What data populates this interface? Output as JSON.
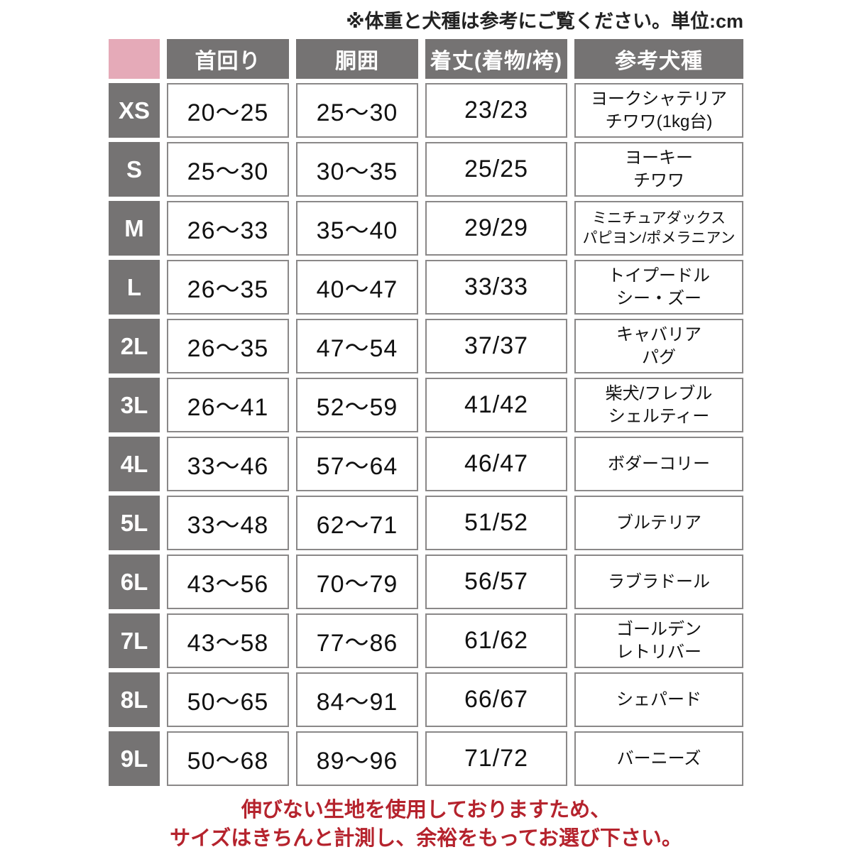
{
  "note": "※体重と犬種は参考にご覧ください。単位:cm",
  "table": {
    "columns": {
      "neck": "首回り",
      "girth": "胴囲",
      "length": "着丈(着物/袴)",
      "breeds": "参考犬種"
    },
    "rows": [
      {
        "size": "XS",
        "neck": "20〜25",
        "girth": "25〜30",
        "length": "23/23",
        "breeds": "ヨークシャテリア\nチワワ(1kg台)"
      },
      {
        "size": "S",
        "neck": "25〜30",
        "girth": "30〜35",
        "length": "25/25",
        "breeds": "ヨーキー\nチワワ"
      },
      {
        "size": "M",
        "neck": "26〜33",
        "girth": "35〜40",
        "length": "29/29",
        "breeds": "ミニチュアダックス\nパピヨン/ポメラニアン"
      },
      {
        "size": "L",
        "neck": "26〜35",
        "girth": "40〜47",
        "length": "33/33",
        "breeds": "トイプードル\nシー・ズー"
      },
      {
        "size": "2L",
        "neck": "26〜35",
        "girth": "47〜54",
        "length": "37/37",
        "breeds": "キャバリア\nパグ"
      },
      {
        "size": "3L",
        "neck": "26〜41",
        "girth": "52〜59",
        "length": "41/42",
        "breeds": "柴犬/フレブル\nシェルティー"
      },
      {
        "size": "4L",
        "neck": "33〜46",
        "girth": "57〜64",
        "length": "46/47",
        "breeds": "ボダーコリー"
      },
      {
        "size": "5L",
        "neck": "33〜48",
        "girth": "62〜71",
        "length": "51/52",
        "breeds": "ブルテリア"
      },
      {
        "size": "6L",
        "neck": "43〜56",
        "girth": "70〜79",
        "length": "56/57",
        "breeds": "ラブラドール"
      },
      {
        "size": "7L",
        "neck": "43〜58",
        "girth": "77〜86",
        "length": "61/62",
        "breeds": "ゴールデン\nレトリバー"
      },
      {
        "size": "8L",
        "neck": "50〜65",
        "girth": "84〜91",
        "length": "66/67",
        "breeds": "シェパード"
      },
      {
        "size": "9L",
        "neck": "50〜68",
        "girth": "89〜96",
        "length": "71/72",
        "breeds": "バーニーズ"
      }
    ]
  },
  "footer": {
    "line1": "伸びない生地を使用しておりますため、",
    "line2": "サイズはきちんと計測し、余裕をもってお選び下さい。"
  },
  "colors": {
    "pink": "#e5aab8",
    "gray": "#757373",
    "cell_border": "#8a8888",
    "warning_red": "#b5232d"
  }
}
